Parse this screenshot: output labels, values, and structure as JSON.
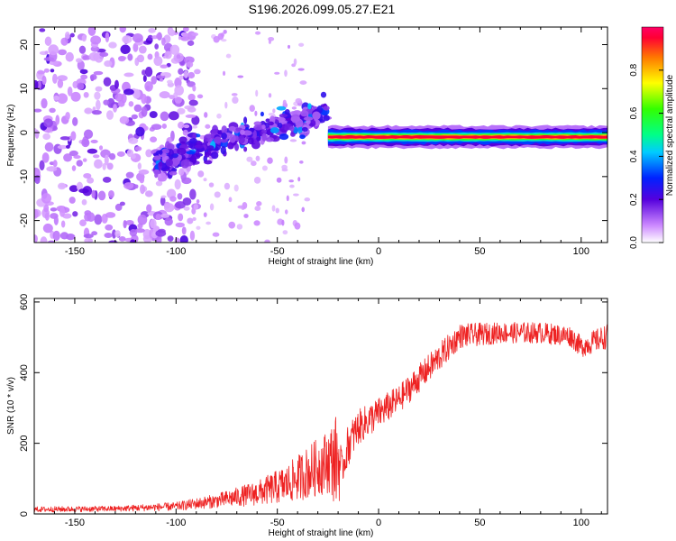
{
  "title": "S196.2026.099.05.27.E21",
  "colors": {
    "snr_line": "#ee2222",
    "axis": "#000000",
    "background": "#ffffff"
  },
  "chart_data": [
    {
      "type": "heatmap",
      "name": "spectrogram",
      "xlabel": "Height of straight line (km)",
      "ylabel": "Frequency (Hz)",
      "xlim": [
        -170,
        113
      ],
      "ylim": [
        -25,
        24
      ],
      "xticks": [
        -150,
        -100,
        -50,
        0,
        50,
        100
      ],
      "yticks": [
        -20,
        -10,
        0,
        10,
        20
      ],
      "colorbar": {
        "label": "Normalized spectral amplitude",
        "range": [
          0.0,
          1.0
        ],
        "ticks": [
          0.0,
          0.2,
          0.4,
          0.6,
          0.8
        ],
        "tick_labels": [
          "0.0",
          "0.2",
          "0.4",
          "0.6",
          "0.8"
        ]
      },
      "features": {
        "noise_region_x": [
          -170,
          -110
        ],
        "rising_trend": {
          "x": [
            -110,
            -25
          ],
          "freq": [
            -7,
            5
          ]
        },
        "carrier_line": {
          "x": [
            -25,
            113
          ],
          "freq": -1,
          "peak_amplitude": 0.95
        }
      }
    },
    {
      "type": "line",
      "name": "snr",
      "xlabel": "Height of straight line (km)",
      "ylabel": "SNR (10 * v/v)",
      "xlim": [
        -170,
        113
      ],
      "ylim": [
        0,
        610
      ],
      "xticks": [
        -150,
        -100,
        -50,
        0,
        50,
        100
      ],
      "yticks": [
        0,
        200,
        400,
        600
      ],
      "envelope": {
        "x": [
          -170,
          -130,
          -100,
          -80,
          -60,
          -45,
          -35,
          -25,
          -20,
          -18,
          -15,
          -10,
          0,
          10,
          20,
          30,
          40,
          60,
          80,
          95,
          100,
          113
        ],
        "mean": [
          12,
          14,
          20,
          35,
          55,
          80,
          110,
          140,
          140,
          120,
          190,
          240,
          280,
          320,
          380,
          440,
          500,
          510,
          510,
          500,
          470,
          500
        ],
        "noise": [
          8,
          8,
          12,
          20,
          35,
          55,
          75,
          90,
          140,
          40,
          60,
          50,
          45,
          40,
          40,
          40,
          35,
          30,
          30,
          30,
          30,
          35
        ]
      }
    }
  ]
}
